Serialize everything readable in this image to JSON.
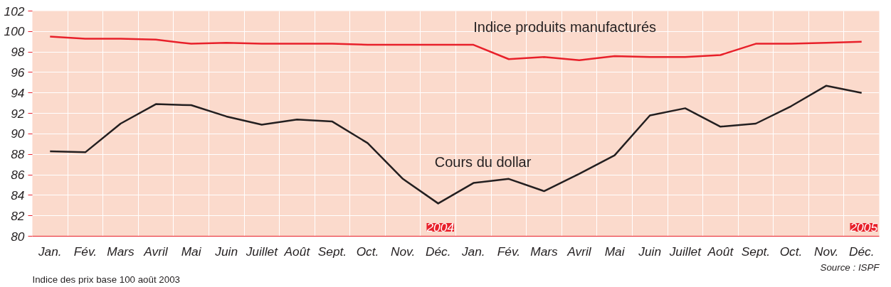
{
  "chart_data": {
    "type": "line",
    "categories": [
      "Jan.",
      "Fév.",
      "Mars",
      "Avril",
      "Mai",
      "Juin",
      "Juillet",
      "Août",
      "Sept.",
      "Oct.",
      "Nov.",
      "Déc.",
      "Jan.",
      "Fév.",
      "Mars",
      "Avril",
      "Mai",
      "Juin",
      "Juillet",
      "Août",
      "Sept.",
      "Oct.",
      "Nov.",
      "Déc."
    ],
    "series": [
      {
        "name": "Indice produits manufacturés",
        "color": "#e8202a",
        "values": [
          99.5,
          99.3,
          99.3,
          99.2,
          98.8,
          98.9,
          98.8,
          98.8,
          98.8,
          98.7,
          98.7,
          98.7,
          98.7,
          97.3,
          97.5,
          97.2,
          97.6,
          97.5,
          97.5,
          97.7,
          98.8,
          98.8,
          98.9,
          99.0
        ]
      },
      {
        "name": "Cours du dollar",
        "color": "#231f20",
        "values": [
          88.3,
          88.2,
          91.0,
          92.9,
          92.8,
          91.7,
          90.9,
          91.4,
          91.2,
          89.1,
          85.6,
          83.2,
          85.2,
          85.6,
          84.4,
          86.1,
          87.9,
          91.8,
          92.5,
          90.7,
          91.0,
          92.7,
          94.7,
          94.0
        ]
      }
    ],
    "ylim": [
      80,
      102
    ],
    "yticks": [
      80,
      82,
      84,
      86,
      88,
      90,
      92,
      94,
      96,
      98,
      100,
      102
    ],
    "grid": true,
    "marker": "none",
    "line_style": "solid",
    "annotations": [
      "2004",
      "2005",
      "Indice des prix base 100 août 2003",
      "Source : ISPF"
    ]
  }
}
